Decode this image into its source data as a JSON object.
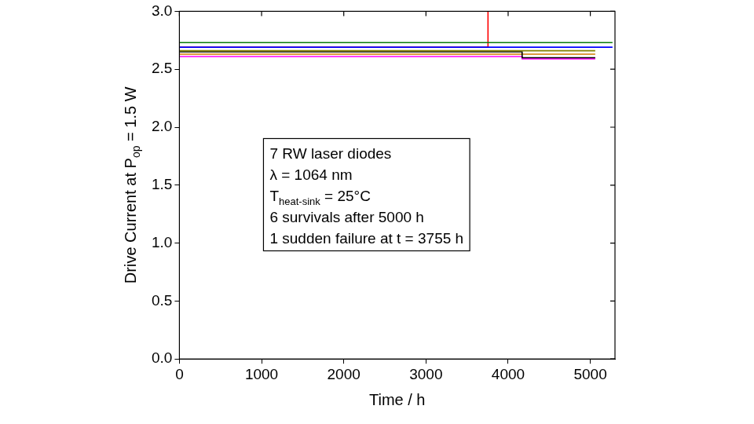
{
  "chart_data": {
    "type": "line",
    "xlabel": "Time / h",
    "ylabel": [
      {
        "text": "Drive Current at P"
      },
      {
        "sub": "op"
      },
      {
        "text": " = 1.5 W"
      }
    ],
    "annotation": [
      [
        {
          "text": "7 RW laser diodes"
        }
      ],
      [
        {
          "text": "λ = 1064 nm"
        }
      ],
      [
        {
          "text": "T"
        },
        {
          "sub": "heat-sink"
        },
        {
          "text": " = 25°C"
        }
      ],
      [
        {
          "text": "6 survivals after 5000 h"
        }
      ],
      [
        {
          "text": "1 sudden failure at t = 3755 h"
        }
      ]
    ],
    "xlim": [
      0,
      5300
    ],
    "xticks": [
      0,
      1000,
      2000,
      3000,
      4000,
      5000
    ],
    "ylim": [
      0,
      3
    ],
    "yticks": [
      {
        "value": 0,
        "label": "0.0"
      },
      0.5,
      {
        "value": 1,
        "label": "1.0"
      },
      1.5,
      {
        "value": 2,
        "label": "2.0"
      },
      2.5,
      {
        "value": 3,
        "label": "3.0"
      }
    ],
    "grid": false,
    "series": [
      {
        "color": "#0b7a0b",
        "x": [
          0,
          5270
        ],
        "values": [
          2.73,
          2.73
        ]
      },
      {
        "color": "#0000ff",
        "x": [
          0,
          5270
        ],
        "values": [
          2.69,
          2.69
        ]
      },
      {
        "color": "#ff0000",
        "x": [
          0,
          3755,
          3755
        ],
        "values": [
          2.69,
          2.69,
          3.0
        ]
      },
      {
        "color": "#808000",
        "x": [
          0,
          5060
        ],
        "values": [
          2.66,
          2.66
        ]
      },
      {
        "color": "#000000",
        "x": [
          0,
          4170,
          4170,
          5060
        ],
        "values": [
          2.65,
          2.65,
          2.6,
          2.6
        ]
      },
      {
        "color": "#d07a00",
        "x": [
          0,
          5060
        ],
        "values": [
          2.63,
          2.63
        ]
      },
      {
        "color": "#ff00ff",
        "x": [
          0,
          4170,
          4170,
          5060
        ],
        "values": [
          2.61,
          2.61,
          2.59,
          2.59
        ]
      }
    ]
  }
}
